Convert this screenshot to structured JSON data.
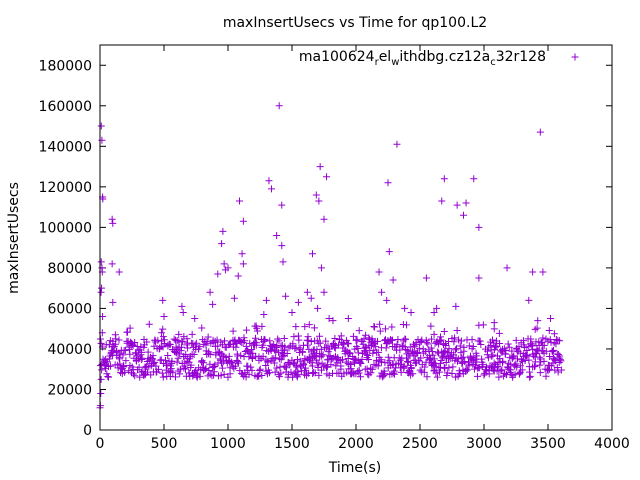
{
  "chart_data": {
    "type": "scatter",
    "title": "maxInsertUsecs vs Time for qp100.L2",
    "xlabel": "Time(s)",
    "ylabel": "maxInsertUsecs",
    "xlim": [
      0,
      4000
    ],
    "ylim": [
      0,
      190000
    ],
    "x_ticks": [
      0,
      500,
      1000,
      1500,
      2000,
      2500,
      3000,
      3500,
      4000
    ],
    "y_ticks": [
      0,
      20000,
      40000,
      60000,
      80000,
      100000,
      120000,
      140000,
      160000,
      180000
    ],
    "marker": "+",
    "color": "#9400d3",
    "legend": {
      "position": "top-right",
      "parts": [
        {
          "text": "ma100624",
          "sub": false
        },
        {
          "text": "r",
          "sub": true
        },
        {
          "text": "el",
          "sub": false
        },
        {
          "text": "w",
          "sub": true
        },
        {
          "text": "ithdbg.cz12a",
          "sub": false
        },
        {
          "text": "c",
          "sub": true
        },
        {
          "text": "32r128",
          "sub": false
        }
      ]
    },
    "series": [
      {
        "name": "ma100624_rel_withdbg.cz12a_c32r128",
        "band": {
          "x_range": [
            0,
            3600
          ],
          "step": 5,
          "typical_min": 26000,
          "typical_max": 45000,
          "start_values": [
            11000,
            12000,
            18000,
            25000
          ]
        },
        "outliers": [
          [
            10,
            150000
          ],
          [
            15,
            143000
          ],
          [
            20,
            115000
          ],
          [
            22,
            114000
          ],
          [
            10,
            83000
          ],
          [
            15,
            80000
          ],
          [
            18,
            78000
          ],
          [
            12,
            70000
          ],
          [
            8,
            68000
          ],
          [
            20,
            56000
          ],
          [
            18,
            48000
          ],
          [
            95,
            104000
          ],
          [
            100,
            102000
          ],
          [
            95,
            82000
          ],
          [
            100,
            63000
          ],
          [
            150,
            78000
          ],
          [
            490,
            64000
          ],
          [
            500,
            56000
          ],
          [
            640,
            61000
          ],
          [
            650,
            58000
          ],
          [
            740,
            55000
          ],
          [
            860,
            68000
          ],
          [
            880,
            62000
          ],
          [
            920,
            77000
          ],
          [
            950,
            92000
          ],
          [
            960,
            98000
          ],
          [
            970,
            82000
          ],
          [
            980,
            79000
          ],
          [
            1000,
            80000
          ],
          [
            1050,
            65000
          ],
          [
            1080,
            76000
          ],
          [
            1090,
            113000
          ],
          [
            1110,
            87000
          ],
          [
            1120,
            103000
          ],
          [
            1120,
            82000
          ],
          [
            1280,
            57000
          ],
          [
            1300,
            64000
          ],
          [
            1320,
            123000
          ],
          [
            1340,
            119000
          ],
          [
            1380,
            96000
          ],
          [
            1400,
            160000
          ],
          [
            1420,
            111000
          ],
          [
            1420,
            91000
          ],
          [
            1430,
            83000
          ],
          [
            1450,
            66000
          ],
          [
            1500,
            58000
          ],
          [
            1550,
            63000
          ],
          [
            1620,
            68000
          ],
          [
            1650,
            65000
          ],
          [
            1660,
            87000
          ],
          [
            1690,
            116000
          ],
          [
            1700,
            60000
          ],
          [
            1710,
            113000
          ],
          [
            1720,
            130000
          ],
          [
            1730,
            80000
          ],
          [
            1750,
            68000
          ],
          [
            1750,
            104000
          ],
          [
            1770,
            125000
          ],
          [
            1790,
            55000
          ],
          [
            1820,
            54000
          ],
          [
            1940,
            55000
          ],
          [
            2180,
            78000
          ],
          [
            2200,
            68000
          ],
          [
            2240,
            64000
          ],
          [
            2250,
            122000
          ],
          [
            2260,
            88000
          ],
          [
            2290,
            74000
          ],
          [
            2320,
            141000
          ],
          [
            2380,
            60000
          ],
          [
            2430,
            58000
          ],
          [
            2550,
            75000
          ],
          [
            2610,
            58000
          ],
          [
            2630,
            60000
          ],
          [
            2670,
            113000
          ],
          [
            2690,
            124000
          ],
          [
            2780,
            61000
          ],
          [
            2790,
            111000
          ],
          [
            2840,
            106000
          ],
          [
            2860,
            112000
          ],
          [
            2920,
            124000
          ],
          [
            2960,
            100000
          ],
          [
            2960,
            75000
          ],
          [
            3080,
            53000
          ],
          [
            3180,
            80000
          ],
          [
            3350,
            64000
          ],
          [
            3380,
            78000
          ],
          [
            3420,
            54000
          ],
          [
            3440,
            147000
          ],
          [
            3460,
            78000
          ],
          [
            3520,
            55000
          ]
        ]
      }
    ]
  }
}
